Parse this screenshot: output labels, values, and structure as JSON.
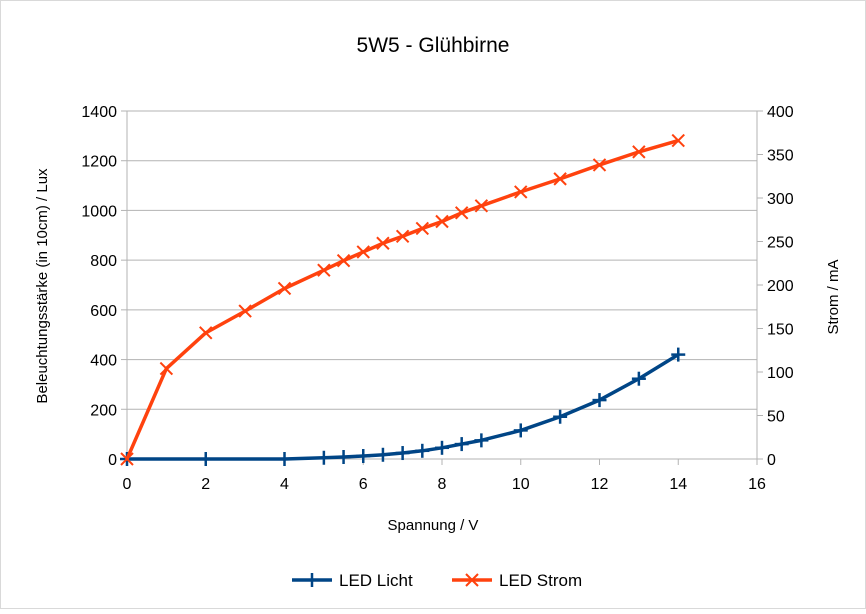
{
  "chart_data": {
    "type": "line",
    "title": "5W5 - Glühbirne",
    "xlabel": "Spannung / V",
    "ylabel": "Beleuchtungsstärke (in 10cm) / Lux",
    "y2label": "Strom / mA",
    "xlim": [
      0,
      16
    ],
    "ylim": [
      0,
      1400
    ],
    "y2lim": [
      0,
      400
    ],
    "xticks": [
      "0",
      "2",
      "4",
      "6",
      "8",
      "10",
      "12",
      "14",
      "16"
    ],
    "yticks": [
      "0",
      "200",
      "400",
      "600",
      "800",
      "1000",
      "1200",
      "1400"
    ],
    "y2ticks": [
      "0",
      "50",
      "100",
      "150",
      "200",
      "250",
      "300",
      "350",
      "400"
    ],
    "grid": "horizontal",
    "legend": "bottom",
    "series": [
      {
        "name": "LED Licht",
        "axis": "left",
        "color": "#004586",
        "marker": "plus",
        "points": [
          [
            0,
            0
          ],
          [
            2,
            0
          ],
          [
            4,
            0
          ],
          [
            5,
            5
          ],
          [
            5.5,
            8
          ],
          [
            6,
            12
          ],
          [
            6.5,
            17
          ],
          [
            7,
            24
          ],
          [
            7.5,
            33
          ],
          [
            8,
            45
          ],
          [
            8.5,
            60
          ],
          [
            9,
            75
          ],
          [
            10,
            115
          ],
          [
            11,
            170
          ],
          [
            12,
            237
          ],
          [
            13,
            323
          ],
          [
            14,
            420
          ]
        ]
      },
      {
        "name": "LED Strom",
        "axis": "right",
        "color": "#ff420e",
        "marker": "cross",
        "points": [
          [
            0,
            0
          ],
          [
            1,
            104
          ],
          [
            2,
            145
          ],
          [
            3,
            170
          ],
          [
            4,
            196
          ],
          [
            5,
            217
          ],
          [
            5.5,
            228
          ],
          [
            6,
            238
          ],
          [
            6.5,
            248
          ],
          [
            7,
            256
          ],
          [
            7.5,
            265
          ],
          [
            8,
            273
          ],
          [
            8.5,
            283
          ],
          [
            9,
            291
          ],
          [
            10,
            307
          ],
          [
            11,
            322
          ],
          [
            12,
            338
          ],
          [
            13,
            353
          ],
          [
            14,
            366
          ]
        ]
      }
    ]
  }
}
